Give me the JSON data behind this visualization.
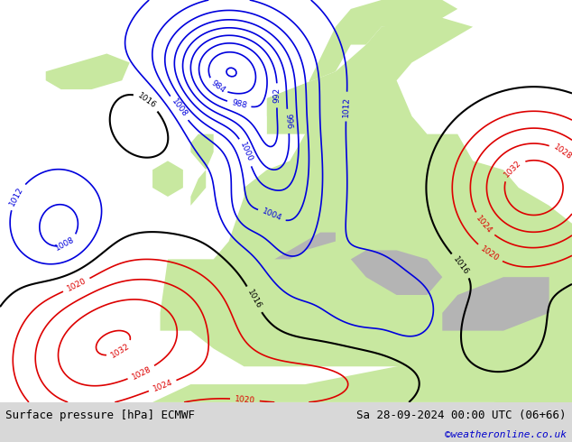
{
  "title_left": "Surface pressure [hPa] ECMWF",
  "title_right": "Sa 28-09-2024 00:00 UTC (06+66)",
  "credit": "©weatheronline.co.uk",
  "figsize": [
    6.34,
    4.9
  ],
  "dpi": 100,
  "land_color": "#c8e8a0",
  "sea_color": "#dce8f0",
  "gray_color": "#b4b4b4",
  "bottom_bar_color": "#d8d8d8",
  "title_fontsize": 9,
  "credit_fontsize": 8,
  "credit_color": "#0000cc",
  "title_color": "#000000",
  "color_low": "#0000dd",
  "color_high": "#dd0000",
  "color_mid": "#000000",
  "contour_interval": 4,
  "level_min": 960,
  "level_max": 1044
}
